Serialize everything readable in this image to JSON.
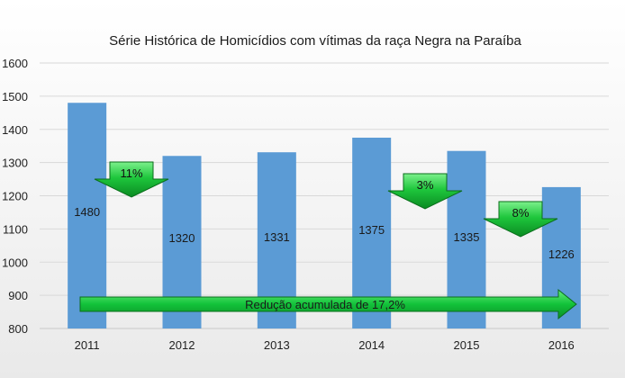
{
  "chart_data": {
    "type": "bar",
    "title": "Série Histórica de Homicídios com vítimas da raça Negra na Paraíba",
    "xlabel": "",
    "ylabel": "",
    "categories": [
      "2011",
      "2012",
      "2013",
      "2014",
      "2015",
      "2016"
    ],
    "values": [
      1480,
      1320,
      1331,
      1375,
      1335,
      1226
    ],
    "data_labels": [
      "1480",
      "1320",
      "1331",
      "1375",
      "1335",
      "1226"
    ],
    "ylim": [
      800,
      1600
    ],
    "yticks": [
      "800",
      "900",
      "1000",
      "1100",
      "1200",
      "1300",
      "1400",
      "1500",
      "1600"
    ],
    "grid": true,
    "legend": "none",
    "bar_color": "#5B9BD5",
    "annotations": {
      "decreases": [
        {
          "label": "11%",
          "between": [
            "2011",
            "2012"
          ]
        },
        {
          "label": "3%",
          "between": [
            "2014",
            "2015"
          ]
        },
        {
          "label": "8%",
          "between": [
            "2015",
            "2016"
          ]
        }
      ],
      "cumulative": "Redução acumulada de 17,2%",
      "arrow_color": "#00B050"
    }
  }
}
